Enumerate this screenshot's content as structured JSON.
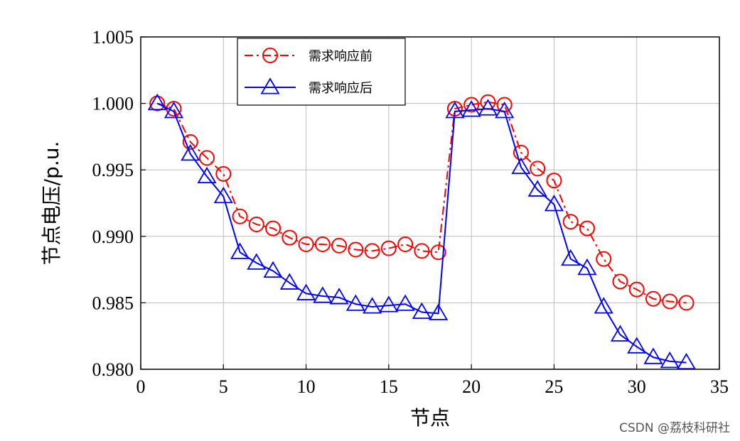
{
  "chart_data": {
    "type": "line",
    "xlabel": "节点",
    "ylabel": "节点电压/p.u.",
    "xlim": [
      0,
      35
    ],
    "ylim": [
      0.98,
      1.005
    ],
    "xticks": [
      "0",
      "5",
      "10",
      "15",
      "20",
      "25",
      "30",
      "35"
    ],
    "yticks": [
      "0.980",
      "0.985",
      "0.990",
      "0.995",
      "1.000",
      "1.005"
    ],
    "grid": true,
    "legend_position": "top-left",
    "x": [
      1,
      2,
      3,
      4,
      5,
      6,
      7,
      8,
      9,
      10,
      11,
      12,
      13,
      14,
      15,
      16,
      17,
      18,
      19,
      20,
      21,
      22,
      23,
      24,
      25,
      26,
      27,
      28,
      29,
      30,
      31,
      32,
      33
    ],
    "series": [
      {
        "name": "需求响应前",
        "color": "#ff0000",
        "marker": "circle",
        "line_style": "dash-dot",
        "values": [
          1.0,
          0.9996,
          0.9971,
          0.9959,
          0.9947,
          0.9915,
          0.9909,
          0.9906,
          0.9899,
          0.9894,
          0.9894,
          0.9893,
          0.989,
          0.9889,
          0.9891,
          0.9894,
          0.9889,
          0.9888,
          0.9996,
          0.9999,
          1.0001,
          0.9999,
          0.9963,
          0.9951,
          0.9942,
          0.9911,
          0.9906,
          0.9883,
          0.9866,
          0.986,
          0.9853,
          0.9851,
          0.985
        ]
      },
      {
        "name": "需求响应后",
        "color": "#0000ff",
        "marker": "triangle",
        "line_style": "solid",
        "values": [
          1.0,
          0.9994,
          0.9962,
          0.9945,
          0.993,
          0.9888,
          0.988,
          0.9874,
          0.9865,
          0.9857,
          0.9855,
          0.9854,
          0.9849,
          0.9847,
          0.9848,
          0.9849,
          0.9843,
          0.9842,
          0.9994,
          0.9995,
          0.9996,
          0.9994,
          0.9952,
          0.9935,
          0.9924,
          0.9883,
          0.9876,
          0.9847,
          0.9826,
          0.9817,
          0.9809,
          0.9806,
          0.9805
        ]
      }
    ]
  },
  "watermark": "CSDN @荔枝科研社"
}
